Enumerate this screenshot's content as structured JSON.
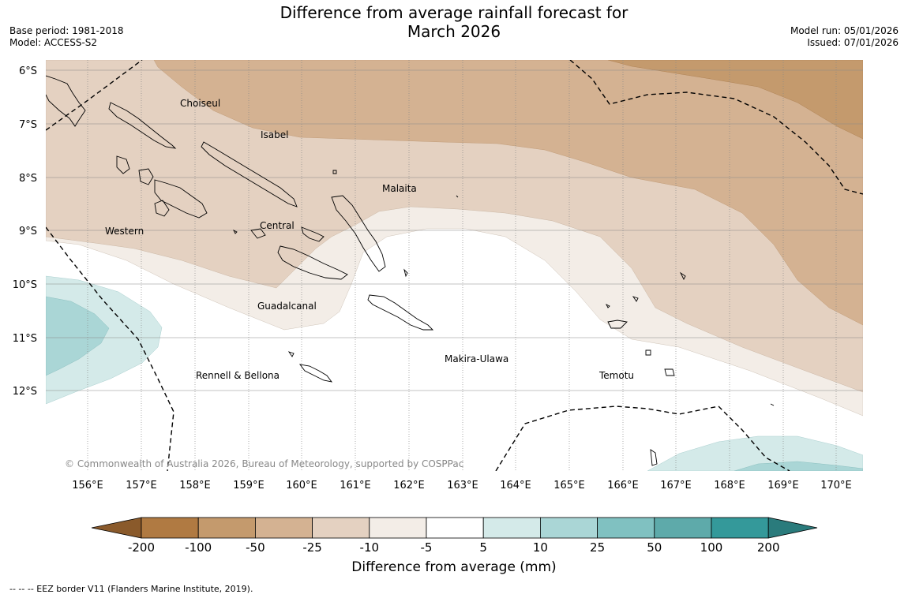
{
  "header": {
    "title_line1": "Difference from average rainfall forecast for",
    "title_line2": "March 2026",
    "base_period": "Base period: 1981-2018",
    "model": "Model: ACCESS-S2",
    "model_run": "Model run: 05/01/2026",
    "issued": "Issued: 07/01/2026"
  },
  "map": {
    "lat_labels": [
      "6°S",
      "7°S",
      "8°S",
      "9°S",
      "10°S",
      "11°S",
      "12°S"
    ],
    "lon_labels": [
      "156°E",
      "157°E",
      "158°E",
      "159°E",
      "160°E",
      "161°E",
      "162°E",
      "163°E",
      "164°E",
      "165°E",
      "166°E",
      "167°E",
      "168°E",
      "169°E",
      "170°E"
    ],
    "region_labels": [
      "Choiseul",
      "Isabel",
      "Malaita",
      "Western",
      "Central",
      "Guadalcanal",
      "Makira-Ulawa",
      "Rennell & Bellona",
      "Temotu"
    ],
    "copyright": "© Commonwealth of Australia 2026, Bureau of Meteorology, supported by COSPPac"
  },
  "colorbar": {
    "title": "Difference from average (mm)",
    "tick_labels": [
      "-200",
      "-100",
      "-50",
      "-25",
      "-10",
      "-5",
      "5",
      "10",
      "25",
      "50",
      "100",
      "200"
    ],
    "colors": [
      "#b07a42",
      "#c49a6d",
      "#d4b292",
      "#e4d1c1",
      "#f3ede7",
      "#ffffff",
      "#d4eae9",
      "#aad6d6",
      "#80c1c1",
      "#5eaaaa",
      "#34999a"
    ],
    "extend_low_color": "#8a5a2b",
    "extend_high_color": "#2a7b7c"
  },
  "footnote": "-- -- -- EEZ border V11 (Flanders Marine Institute, 2019)."
}
